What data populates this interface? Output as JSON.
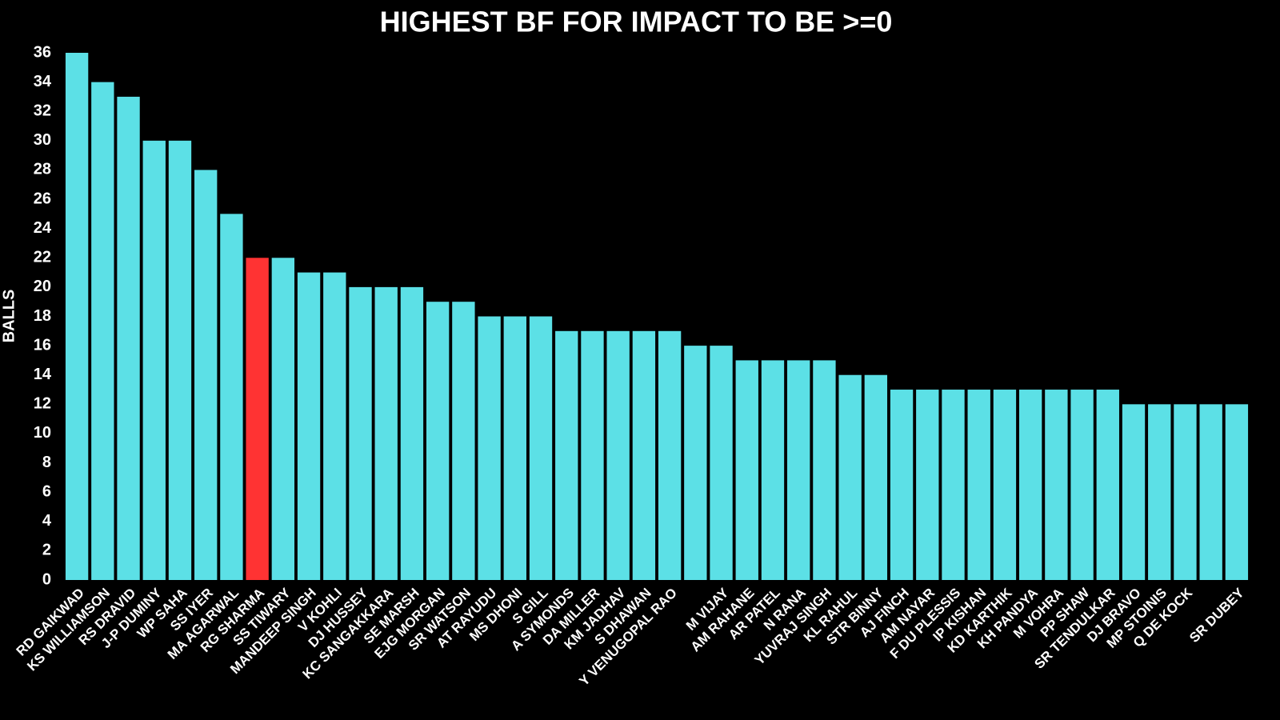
{
  "chart_data": {
    "type": "bar",
    "title": "HIGHEST BF FOR IMPACT TO BE >=0",
    "y_label": "BALLS",
    "categories": [
      "RD GAIKWAD",
      "KS WILLIAMSON",
      "RS DRAVID",
      "J-P DUMINY",
      "WP SAHA",
      "SS IYER",
      "MA AGARWAL",
      "RG SHARMA",
      "SS TIWARY",
      "MANDEEP SINGH",
      "V KOHLI",
      "DJ HUSSEY",
      "KC SANGAKKARA",
      "SE MARSH",
      "EJG MORGAN",
      "SR WATSON",
      "AT RAYUDU",
      "MS DHONI",
      "S GILL",
      "A SYMONDS",
      "DA MILLER",
      "KM JADHAV",
      "S DHAWAN",
      "Y VENUGOPAL RAO",
      null,
      "M VIJAY",
      "AM RAHANE",
      "AR PATEL",
      "N RANA",
      "YUVRAJ SINGH",
      "KL RAHUL",
      "STR BINNY",
      "AJ FINCH",
      "AM NAYAR",
      "F DU PLESSIS",
      "IP KISHAN",
      "KD KARTHIK",
      "KH PANDYA",
      "M VOHRA",
      "PP SHAW",
      "SR TENDULKAR",
      "DJ BRAVO",
      "MP STOINIS",
      "Q DE KOCK",
      null,
      "SR DUBEY"
    ],
    "values": [
      36,
      34,
      33,
      30,
      30,
      28,
      25,
      22,
      22,
      21,
      21,
      20,
      20,
      20,
      19,
      19,
      18,
      18,
      18,
      17,
      17,
      17,
      17,
      17,
      16,
      16,
      15,
      15,
      15,
      15,
      14,
      14,
      13,
      13,
      13,
      13,
      13,
      13,
      13,
      13,
      13,
      12,
      12,
      12,
      12,
      12
    ],
    "colors": [
      "#5ce0e6",
      "#5ce0e6",
      "#5ce0e6",
      "#5ce0e6",
      "#5ce0e6",
      "#5ce0e6",
      "#5ce0e6",
      "#ff3333",
      "#5ce0e6",
      "#5ce0e6",
      "#5ce0e6",
      "#5ce0e6",
      "#5ce0e6",
      "#5ce0e6",
      "#5ce0e6",
      "#5ce0e6",
      "#5ce0e6",
      "#5ce0e6",
      "#5ce0e6",
      "#5ce0e6",
      "#5ce0e6",
      "#5ce0e6",
      "#5ce0e6",
      "#5ce0e6",
      "#5ce0e6",
      "#5ce0e6",
      "#5ce0e6",
      "#5ce0e6",
      "#5ce0e6",
      "#5ce0e6",
      "#5ce0e6",
      "#5ce0e6",
      "#5ce0e6",
      "#5ce0e6",
      "#5ce0e6",
      "#5ce0e6",
      "#5ce0e6",
      "#5ce0e6",
      "#5ce0e6",
      "#5ce0e6",
      "#5ce0e6",
      "#5ce0e6",
      "#5ce0e6",
      "#5ce0e6",
      "#5ce0e6",
      "#5ce0e6"
    ],
    "ylim": [
      0,
      36
    ],
    "yticks": [
      0,
      2,
      4,
      6,
      8,
      10,
      12,
      14,
      16,
      18,
      20,
      22,
      24,
      26,
      28,
      30,
      32,
      34,
      36
    ]
  }
}
